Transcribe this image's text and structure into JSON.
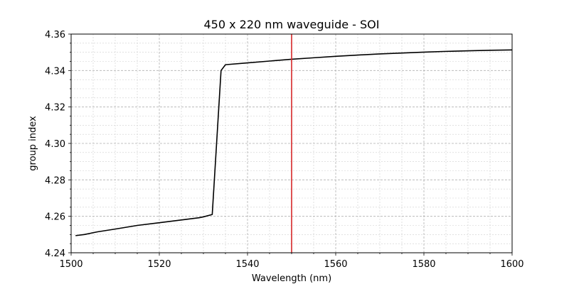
{
  "chart_data": {
    "type": "line",
    "title": "450 x 220 nm waveguide - SOI",
    "xlabel": "Wavelength (nm)",
    "ylabel": "group index",
    "xlim": [
      1500,
      1600
    ],
    "ylim": [
      4.24,
      4.36
    ],
    "xticks": [
      1500,
      1520,
      1540,
      1560,
      1580,
      1600
    ],
    "yticks": [
      4.24,
      4.26,
      4.28,
      4.3,
      4.32,
      4.34,
      4.36
    ],
    "xtick_labels": [
      "1500",
      "1520",
      "1540",
      "1560",
      "1580",
      "1600"
    ],
    "ytick_labels": [
      "4.24",
      "4.26",
      "4.28",
      "4.30",
      "4.32",
      "4.34",
      "4.36"
    ],
    "grid": true,
    "minor_grid": true,
    "series": [
      {
        "color": "#000000",
        "x": [
          1501,
          1503,
          1506,
          1510,
          1515,
          1520,
          1525,
          1529,
          1530,
          1532,
          1534,
          1535,
          1540,
          1545,
          1550,
          1555,
          1560,
          1565,
          1570,
          1575,
          1580,
          1585,
          1590,
          1595,
          1600
        ],
        "y": [
          4.2494,
          4.25,
          4.2515,
          4.253,
          4.255,
          4.2565,
          4.258,
          4.2592,
          4.2597,
          4.261,
          4.34,
          4.3432,
          4.3442,
          4.3452,
          4.3462,
          4.347,
          4.3478,
          4.3485,
          4.3491,
          4.3496,
          4.3501,
          4.3505,
          4.3508,
          4.3511,
          4.3513
        ]
      }
    ],
    "annotations": [
      {
        "type": "vline",
        "x": 1550,
        "color": "#d62728"
      }
    ]
  }
}
